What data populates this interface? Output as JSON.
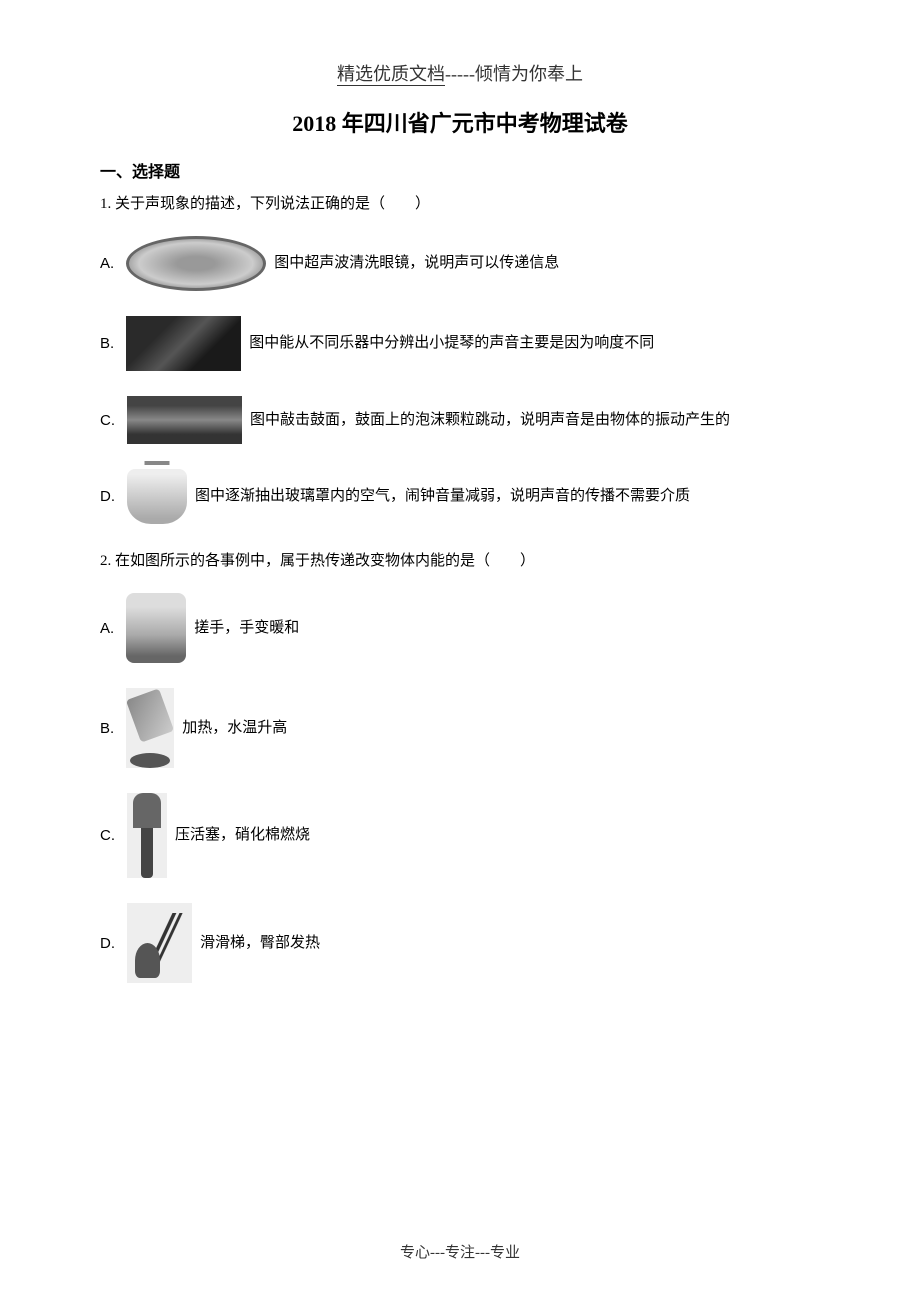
{
  "watermark_top": {
    "prefix": "精选优质文档",
    "separator": "-----",
    "suffix": "倾情为你奉上"
  },
  "title": "2018 年四川省广元市中考物理试卷",
  "section1": {
    "heading": "一、选择题",
    "q1": {
      "stem": "1. 关于声现象的描述，下列说法正确的是（　　）",
      "options": {
        "A": {
          "label": "A.",
          "text": "图中超声波清洗眼镜，说明声可以传递信息"
        },
        "B": {
          "label": "B.",
          "text": "图中能从不同乐器中分辨出小提琴的声音主要是因为响度不同"
        },
        "C": {
          "label": "C.",
          "text": "图中敲击鼓面，鼓面上的泡沫颗粒跳动，说明声音是由物体的振动产生的"
        },
        "D": {
          "label": "D.",
          "text": "图中逐渐抽出玻璃罩内的空气，闹钟音量减弱，说明声音的传播不需要介质"
        }
      }
    },
    "q2": {
      "stem": "2. 在如图所示的各事例中，属于热传递改变物体内能的是（　　）",
      "options": {
        "A": {
          "label": "A.",
          "text": "搓手，手变暖和"
        },
        "B": {
          "label": "B.",
          "text": "加热，水温升高"
        },
        "C": {
          "label": "C.",
          "text": "压活塞，硝化棉燃烧"
        },
        "D": {
          "label": "D.",
          "text": "滑滑梯，臀部发热"
        }
      }
    }
  },
  "footer": "专心---专注---专业"
}
